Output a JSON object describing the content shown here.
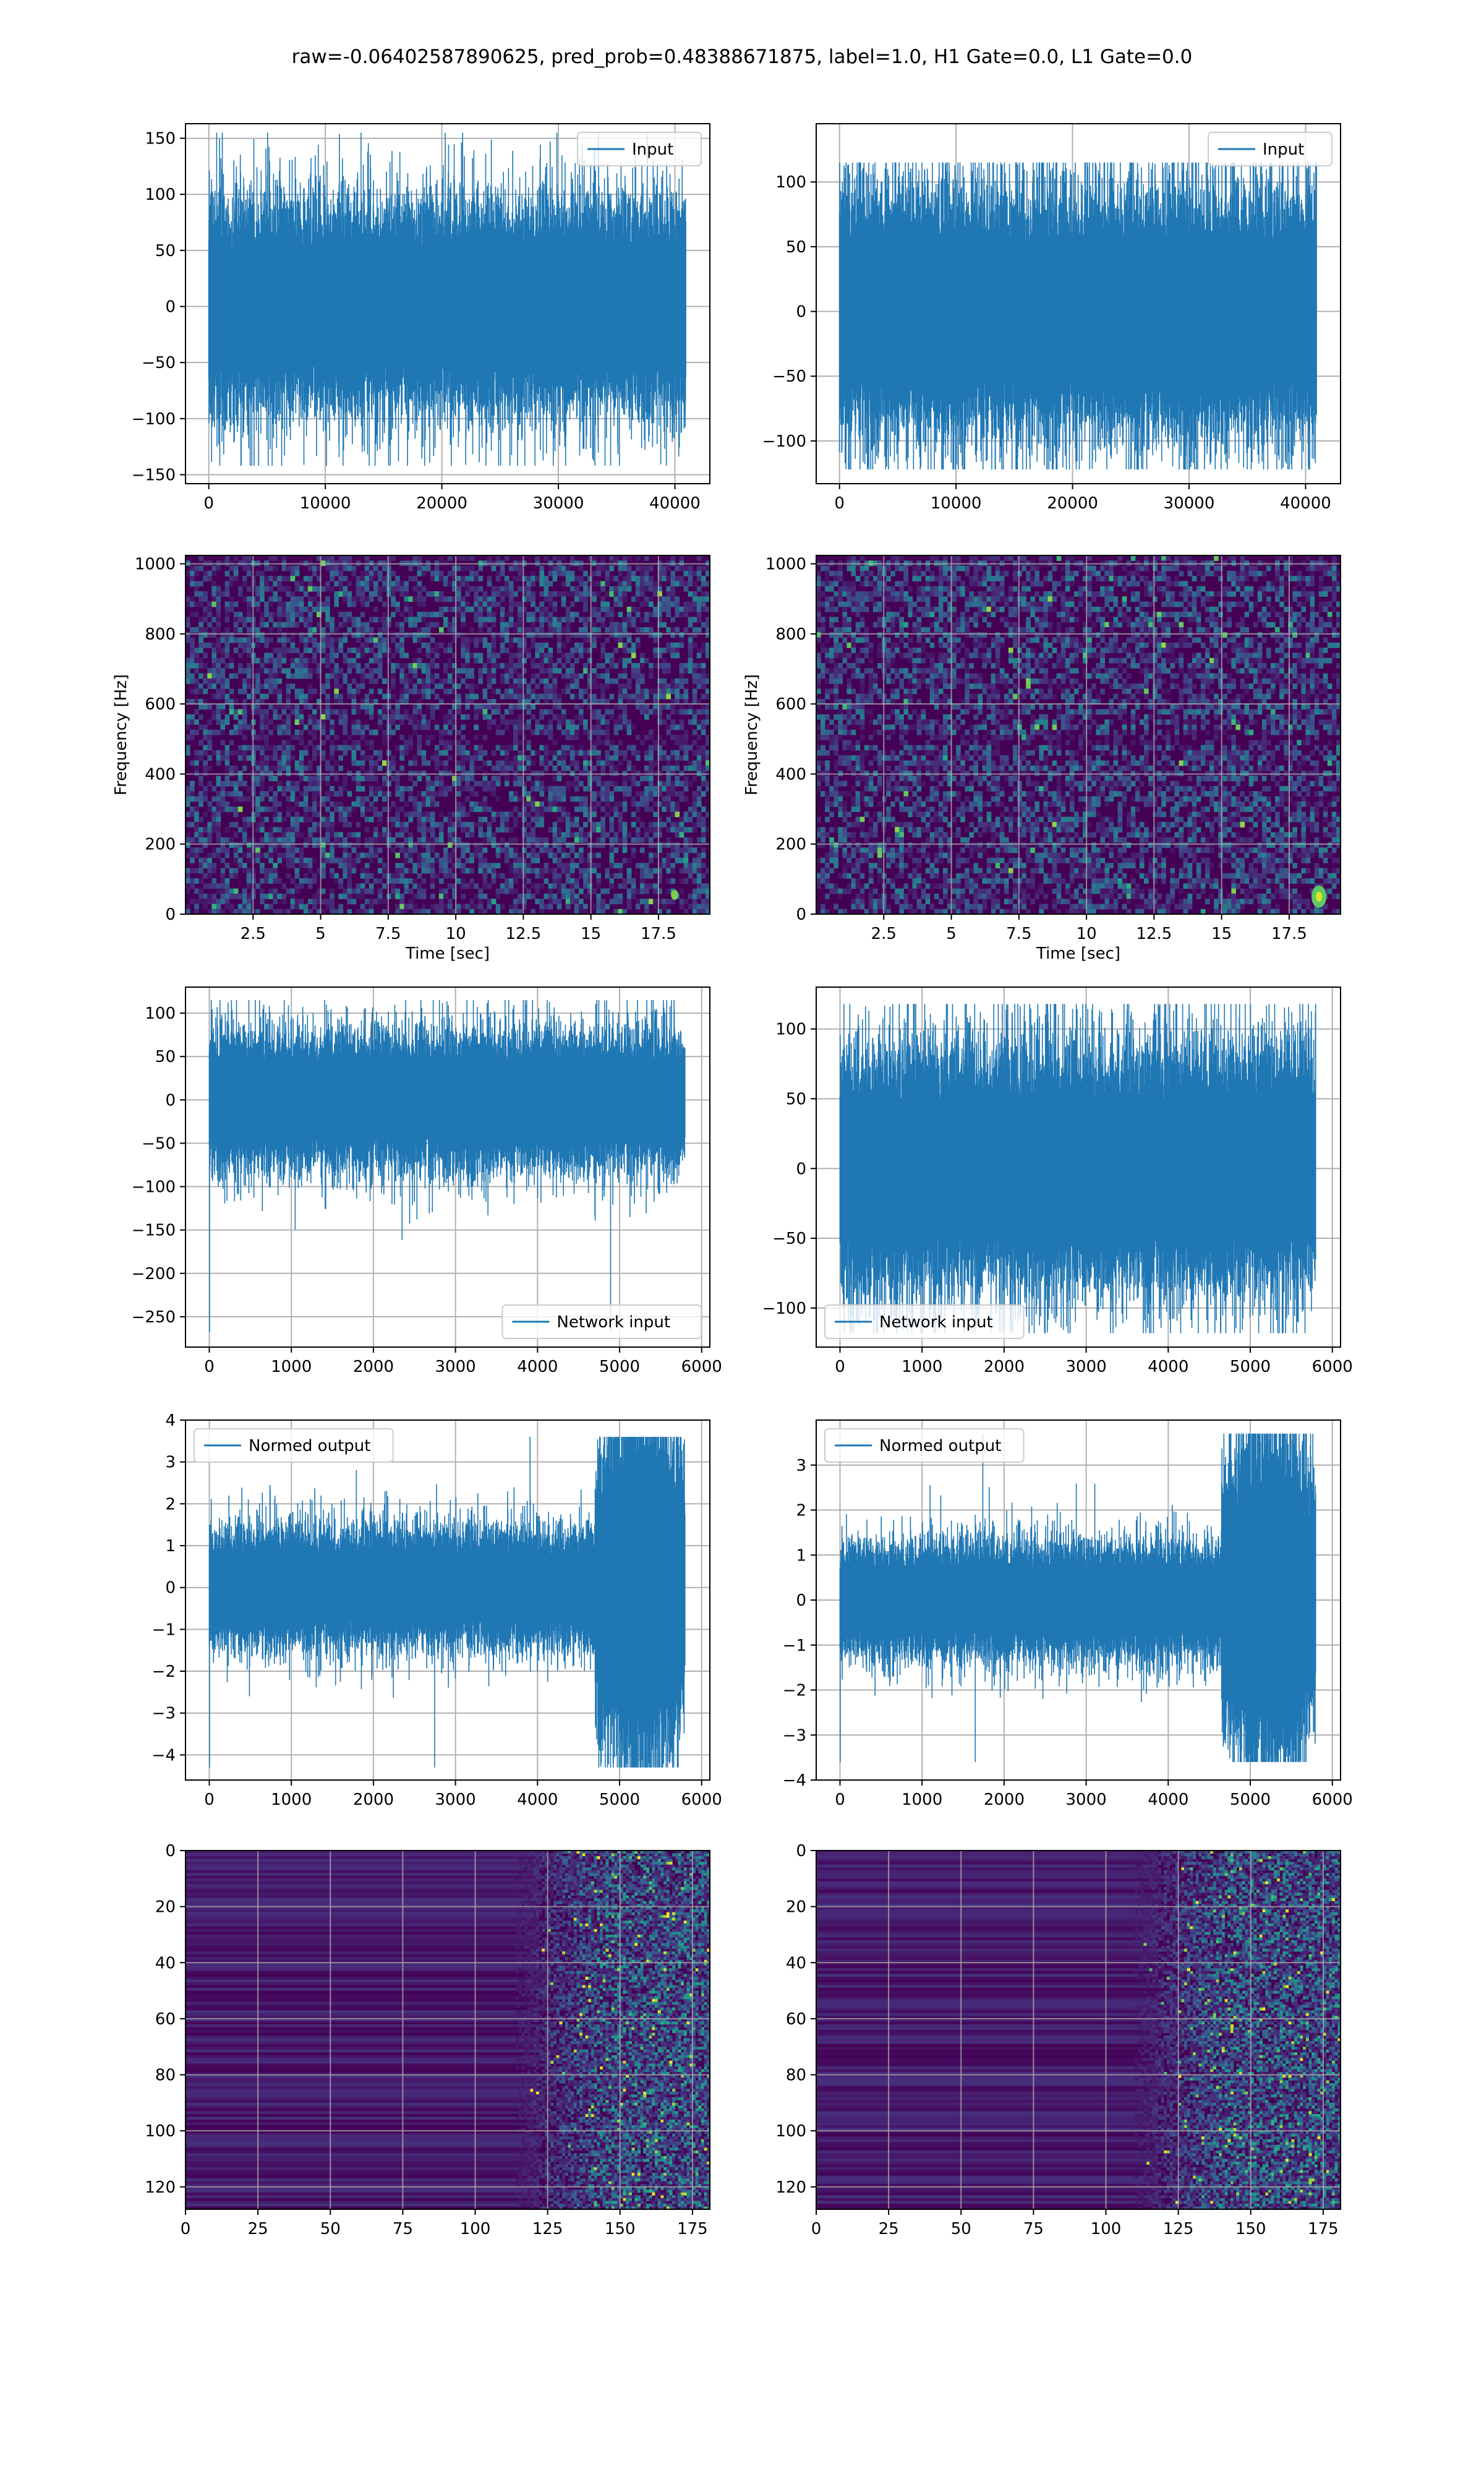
{
  "figure": {
    "suptitle": "raw=-0.06402587890625, pred_prob=0.48388671875, label=1.0, H1 Gate=0.0, L1 Gate=0.0"
  },
  "colors": {
    "line": "#1f77b4",
    "grid": "#b0b0b0",
    "viridis_low": "#440154",
    "viridis_mid": "#21918c",
    "viridis_high": "#fde725"
  },
  "chart_data": [
    {
      "id": "input-h1",
      "type": "line",
      "row": 1,
      "col": 1,
      "series": [
        {
          "name": "Input",
          "n_samples": 40960,
          "amplitude_std": 30,
          "peak_max": 155,
          "peak_min": -142
        }
      ],
      "xlim": [
        -2000,
        43000
      ],
      "ylim": [
        -158,
        163
      ],
      "xticks": [
        0,
        10000,
        20000,
        30000,
        40000
      ],
      "yticks": [
        -150,
        -100,
        -50,
        0,
        50,
        100,
        150
      ],
      "legend": "upper right",
      "grid": true,
      "xlabel": "",
      "ylabel": ""
    },
    {
      "id": "input-l1",
      "type": "line",
      "row": 1,
      "col": 2,
      "series": [
        {
          "name": "Input",
          "n_samples": 40960,
          "amplitude_std": 30,
          "peak_max": 115,
          "peak_min": -122
        }
      ],
      "xlim": [
        -2000,
        43000
      ],
      "ylim": [
        -133,
        145
      ],
      "xticks": [
        0,
        10000,
        20000,
        30000,
        40000
      ],
      "yticks": [
        -100,
        -50,
        0,
        50,
        100
      ],
      "legend": "upper right",
      "grid": true,
      "xlabel": "",
      "ylabel": ""
    },
    {
      "id": "spectrogram-h1",
      "type": "heatmap",
      "row": 2,
      "col": 1,
      "xlim": [
        0,
        19.4
      ],
      "ylim": [
        0,
        1024
      ],
      "xticks": [
        2.5,
        5.0,
        7.5,
        10.0,
        12.5,
        15.0,
        17.5
      ],
      "yticks": [
        0,
        200,
        400,
        600,
        800,
        1000
      ],
      "xlabel": "Time [sec]",
      "ylabel": "Frequency [Hz]",
      "grid": true,
      "notes": "mostly low-intensity noise; dark band near 500 Hz and 1000 Hz"
    },
    {
      "id": "spectrogram-l1",
      "type": "heatmap",
      "row": 2,
      "col": 2,
      "xlim": [
        0,
        19.4
      ],
      "ylim": [
        0,
        1024
      ],
      "xticks": [
        2.5,
        5.0,
        7.5,
        10.0,
        12.5,
        15.0,
        17.5
      ],
      "yticks": [
        0,
        200,
        400,
        600,
        800,
        1000
      ],
      "xlabel": "Time [sec]",
      "ylabel": "Frequency [Hz]",
      "grid": true,
      "notes": "bright spot near t=18.5 s, f=50 Hz"
    },
    {
      "id": "network-input-h1",
      "type": "line",
      "row": 3,
      "col": 1,
      "series": [
        {
          "name": "Network input",
          "n_samples": 5800,
          "amplitude_std": 25,
          "peak_max": 115,
          "peak_min": -268
        }
      ],
      "xlim": [
        -290,
        6100
      ],
      "ylim": [
        -285,
        130
      ],
      "xticks": [
        0,
        1000,
        2000,
        3000,
        4000,
        5000,
        6000
      ],
      "yticks": [
        -250,
        -200,
        -150,
        -100,
        -50,
        0,
        50,
        100
      ],
      "legend": "lower right",
      "grid": true,
      "xlabel": "",
      "ylabel": ""
    },
    {
      "id": "network-input-l1",
      "type": "line",
      "row": 3,
      "col": 2,
      "series": [
        {
          "name": "Network input",
          "n_samples": 5800,
          "amplitude_std": 28,
          "peak_max": 118,
          "peak_min": -118
        }
      ],
      "xlim": [
        -290,
        6100
      ],
      "ylim": [
        -128,
        130
      ],
      "xticks": [
        0,
        1000,
        2000,
        3000,
        4000,
        5000,
        6000
      ],
      "yticks": [
        -100,
        -50,
        0,
        50,
        100
      ],
      "legend": "lower left",
      "grid": true,
      "xlabel": "",
      "ylabel": ""
    },
    {
      "id": "normed-output-h1",
      "type": "line",
      "row": 4,
      "col": 1,
      "series": [
        {
          "name": "Normed output",
          "n_samples": 5800,
          "amplitude_std": 0.45,
          "burst_start": 4700,
          "peak_max": 3.6,
          "peak_min": -4.3
        }
      ],
      "xlim": [
        -290,
        6100
      ],
      "ylim": [
        -4.6,
        4.0
      ],
      "xticks": [
        0,
        1000,
        2000,
        3000,
        4000,
        5000,
        6000
      ],
      "yticks": [
        -4,
        -3,
        -2,
        -1,
        0,
        1,
        2,
        3,
        4
      ],
      "legend": "upper left",
      "grid": true,
      "xlabel": "",
      "ylabel": ""
    },
    {
      "id": "normed-output-l1",
      "type": "line",
      "row": 4,
      "col": 2,
      "series": [
        {
          "name": "Normed output",
          "n_samples": 5800,
          "amplitude_std": 0.4,
          "burst_start": 4650,
          "peak_max": 3.7,
          "peak_min": -3.6
        }
      ],
      "xlim": [
        -290,
        6100
      ],
      "ylim": [
        -4.0,
        4.0
      ],
      "xticks": [
        0,
        1000,
        2000,
        3000,
        4000,
        5000,
        6000
      ],
      "yticks": [
        -4,
        -3,
        -2,
        -1,
        0,
        1,
        2,
        3
      ],
      "legend": "upper left",
      "grid": true,
      "xlabel": "",
      "ylabel": ""
    },
    {
      "id": "feature-map-h1",
      "type": "heatmap",
      "row": 5,
      "col": 1,
      "xlim": [
        0,
        181
      ],
      "ylim": [
        128,
        0
      ],
      "rows": 128,
      "cols": 181,
      "xticks": [
        0,
        25,
        50,
        75,
        100,
        125,
        150,
        175
      ],
      "yticks": [
        0,
        20,
        40,
        60,
        80,
        100,
        120
      ],
      "grid": true,
      "notes": "dark for columns 0-125, bright speckles after ~130"
    },
    {
      "id": "feature-map-l1",
      "type": "heatmap",
      "row": 5,
      "col": 2,
      "xlim": [
        0,
        181
      ],
      "ylim": [
        128,
        0
      ],
      "rows": 128,
      "cols": 181,
      "xticks": [
        0,
        25,
        50,
        75,
        100,
        125,
        150,
        175
      ],
      "yticks": [
        0,
        20,
        40,
        60,
        80,
        100,
        120
      ],
      "grid": true,
      "notes": "dark for columns 0-120, bright speckles after ~125"
    }
  ]
}
